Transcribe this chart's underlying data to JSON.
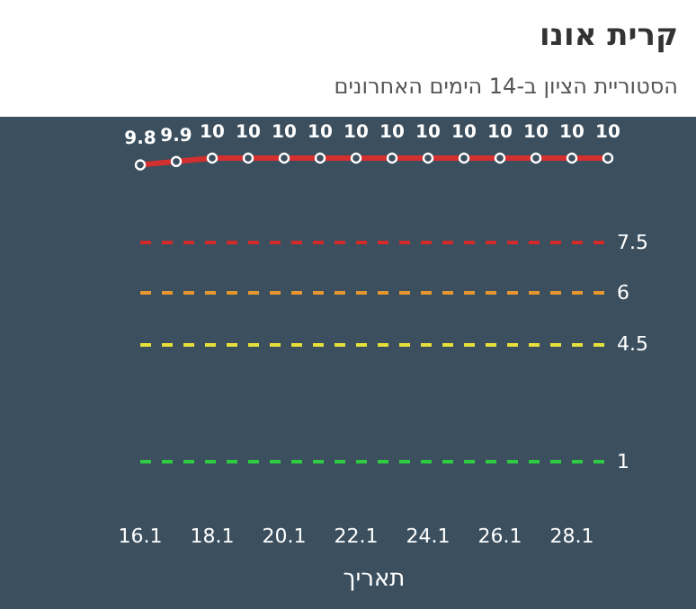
{
  "chart_data": {
    "type": "line",
    "title": "קרית אונו",
    "subtitle": "הסטוריית הציון ב-14 הימים האחרונים",
    "xlabel": "תאריך",
    "categories": [
      "16.1",
      null,
      "18.1",
      null,
      "20.1",
      null,
      "22.1",
      null,
      "24.1",
      null,
      "26.1",
      null,
      "28.1",
      null
    ],
    "series": [
      {
        "color": "#d32f2f",
        "values": [
          9.8,
          9.9,
          10,
          10,
          10,
          10,
          10,
          10,
          10,
          10,
          10,
          10,
          10,
          10
        ]
      }
    ],
    "tick_labels": "x",
    "data_labels": true,
    "marker": "circle",
    "line_style": "solid",
    "grid": false,
    "ref_lines": [
      {
        "axis": "y",
        "value": 7.5,
        "label": "7.5",
        "color": "#d42a2a",
        "line_style": "dashed"
      },
      {
        "axis": "y",
        "value": 6,
        "label": "6",
        "color": "#e6962e",
        "line_style": "dashed"
      },
      {
        "axis": "y",
        "value": 4.5,
        "label": "4.5",
        "color": "#e8e03a",
        "line_style": "dashed"
      },
      {
        "axis": "y",
        "value": 1,
        "label": "1",
        "color": "#2ecc40",
        "line_style": "dashed"
      }
    ]
  }
}
